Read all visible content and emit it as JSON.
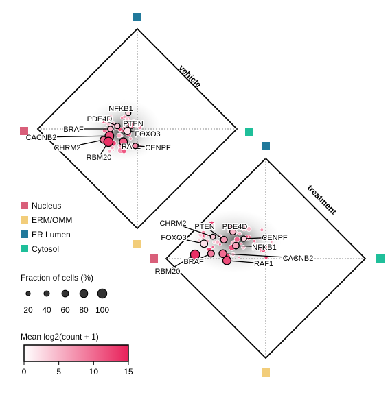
{
  "chart_data": {
    "type": "scatter",
    "corners": [
      {
        "name": "Nucleus",
        "color": "#d95f7a",
        "position": "left"
      },
      {
        "name": "ERM/OMM",
        "color": "#f2cd7a",
        "position": "bottom"
      },
      {
        "name": "ER Lumen",
        "color": "#21799b",
        "position": "top"
      },
      {
        "name": "Cytosol",
        "color": "#1fbf9a",
        "position": "right"
      }
    ],
    "panels": [
      {
        "title": "vehicle",
        "genes": [
          {
            "name": "NFKB1",
            "u": -0.09,
            "v": 0.16,
            "mean": 3,
            "fraction": 35
          },
          {
            "name": "PDE4D",
            "u": -0.2,
            "v": 0.03,
            "mean": 4,
            "fraction": 40
          },
          {
            "name": "PTEN",
            "u": -0.06,
            "v": 0.04,
            "mean": 9,
            "fraction": 60
          },
          {
            "name": "BRAF",
            "u": -0.27,
            "v": 0.0,
            "mean": 5,
            "fraction": 45
          },
          {
            "name": "FOXO3",
            "u": -0.1,
            "v": -0.02,
            "mean": 2,
            "fraction": 70
          },
          {
            "name": "CACNB2",
            "u": -0.28,
            "v": -0.07,
            "mean": 12,
            "fraction": 90
          },
          {
            "name": "RAF1",
            "u": -0.14,
            "v": -0.13,
            "mean": 11,
            "fraction": 80
          },
          {
            "name": "CHRM2",
            "u": -0.34,
            "v": -0.11,
            "mean": 10,
            "fraction": 60
          },
          {
            "name": "CENPF",
            "u": -0.02,
            "v": -0.17,
            "mean": 8,
            "fraction": 40
          },
          {
            "name": "RBM20",
            "u": -0.29,
            "v": -0.13,
            "mean": 14,
            "fraction": 100
          }
        ]
      },
      {
        "title": "treatment",
        "genes": [
          {
            "name": "CHRM2",
            "u": -0.53,
            "v": 0.22,
            "mean": 4,
            "fraction": 35
          },
          {
            "name": "PTEN",
            "u": -0.42,
            "v": 0.19,
            "mean": 7,
            "fraction": 60
          },
          {
            "name": "PDE4D",
            "u": -0.33,
            "v": 0.27,
            "mean": 5,
            "fraction": 50
          },
          {
            "name": "CENPF",
            "u": -0.22,
            "v": 0.2,
            "mean": 3,
            "fraction": 40
          },
          {
            "name": "NFKB1",
            "u": -0.3,
            "v": 0.13,
            "mean": 6,
            "fraction": 55
          },
          {
            "name": "FOXO3",
            "u": -0.62,
            "v": 0.15,
            "mean": 2,
            "fraction": 70
          },
          {
            "name": "RBM20",
            "u": -0.71,
            "v": 0.04,
            "mean": 14,
            "fraction": 100
          },
          {
            "name": "BRAF",
            "u": -0.55,
            "v": 0.05,
            "mean": 9,
            "fraction": 60
          },
          {
            "name": "RAF1",
            "u": -0.39,
            "v": -0.02,
            "mean": 12,
            "fraction": 85
          },
          {
            "name": "CACNB2",
            "u": -0.43,
            "v": 0.05,
            "mean": 10,
            "fraction": 75
          }
        ]
      }
    ],
    "size_legend": {
      "title": "Fraction of cells (%)",
      "values": [
        20,
        40,
        60,
        80,
        100
      ]
    },
    "color_legend": {
      "title": "Mean log2(count + 1)",
      "ticks": [
        0,
        5,
        10,
        15
      ],
      "min": 0,
      "max": 15,
      "low_color": "#ffffff",
      "high_color": "#e8215a"
    }
  }
}
